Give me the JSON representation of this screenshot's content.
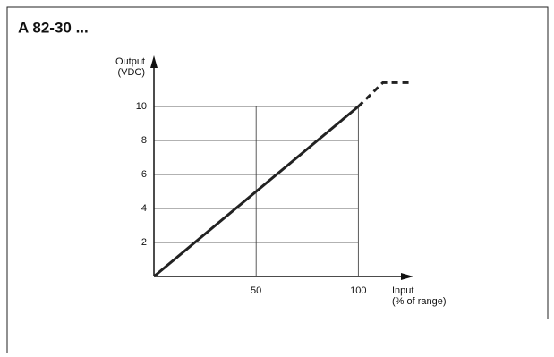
{
  "chart_data": {
    "type": "line",
    "title": "A 82-30 ...",
    "ylabel": [
      "Output",
      "(VDC)"
    ],
    "xlabel": [
      "Input",
      "(% of range)"
    ],
    "series": [
      {
        "x": [
          0,
          100
        ],
        "values": [
          0,
          10
        ],
        "color": "#222222",
        "dashed": false
      },
      {
        "x": [
          100,
          112,
          127
        ],
        "values": [
          10,
          11.4,
          11.4
        ],
        "color": "#222222",
        "dashed": true
      }
    ],
    "xlim": [
      0,
      127
    ],
    "ylim": [
      0,
      13
    ],
    "xticks": [
      50,
      100
    ],
    "yticks": [
      2,
      4,
      6,
      8,
      10
    ],
    "grid": true
  }
}
